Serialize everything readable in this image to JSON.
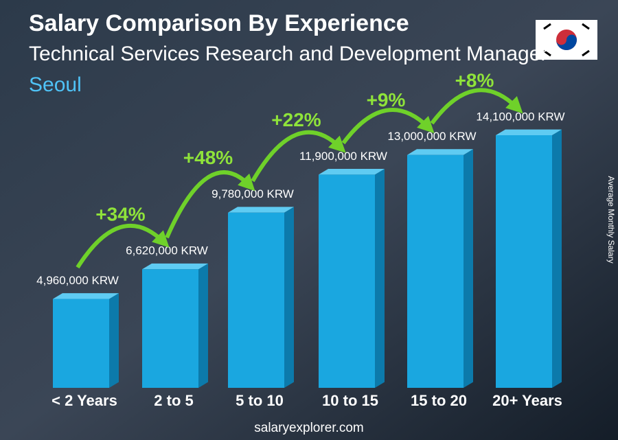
{
  "chart_data": {
    "type": "bar",
    "title": "Salary Comparison By Experience",
    "subtitle": "Technical Services Research and Development Manager",
    "location": "Seoul",
    "y_axis_label": "Average Monthly Salary",
    "source": "salaryexplorer.com",
    "categories": [
      "< 2 Years",
      "2 to 5",
      "5 to 10",
      "10 to 15",
      "15 to 20",
      "20+ Years"
    ],
    "values": [
      4960000,
      6620000,
      9780000,
      11900000,
      13000000,
      14100000
    ],
    "value_labels": [
      "4,960,000 KRW",
      "6,620,000 KRW",
      "9,780,000 KRW",
      "11,900,000 KRW",
      "13,000,000 KRW",
      "14,100,000 KRW"
    ],
    "changes": [
      "+34%",
      "+48%",
      "+22%",
      "+9%",
      "+8%"
    ],
    "color": "#1aa7e0"
  }
}
